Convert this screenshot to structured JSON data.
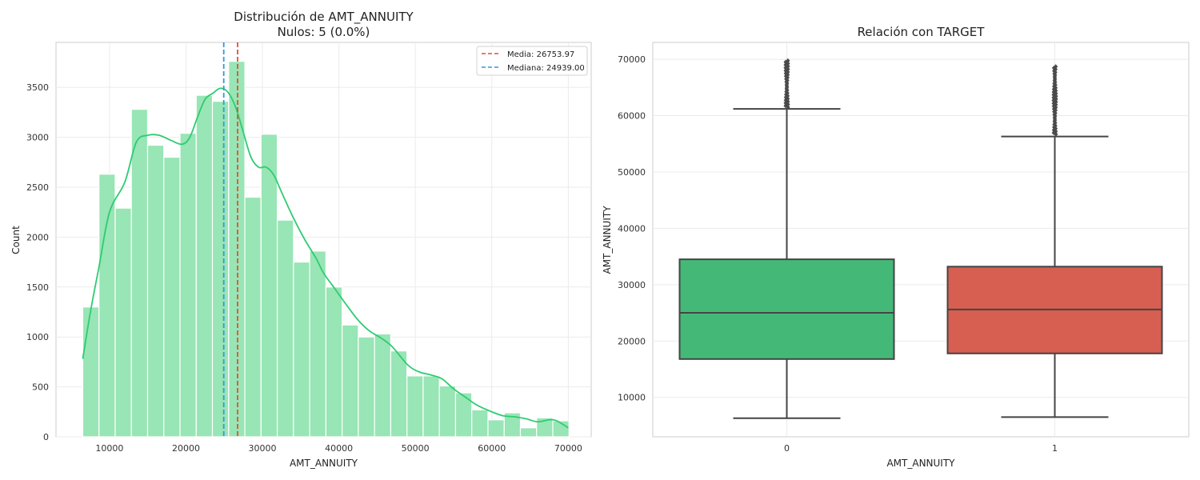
{
  "chart_data": [
    {
      "type": "histogram",
      "title": "Distribución de AMT_ANNUITY",
      "subtitle": "Nulos: 5 (0.0%)",
      "xlabel": "AMT_ANNUITY",
      "ylabel": "Count",
      "xlim": [
        3000,
        73000
      ],
      "ylim": [
        0,
        3950
      ],
      "xticks": [
        10000,
        20000,
        30000,
        40000,
        50000,
        60000,
        70000
      ],
      "yticks": [
        0,
        500,
        1000,
        1500,
        2000,
        2500,
        3000,
        3500
      ],
      "bins": [
        6500,
        8620,
        10740,
        12860,
        14980,
        17100,
        19220,
        21340,
        23460,
        25580,
        27700,
        29820,
        31940,
        34060,
        36180,
        38300,
        40420,
        42540,
        44660,
        46780,
        48900,
        51020,
        53140,
        55260,
        57380,
        59500,
        61620,
        63740,
        65860,
        67980,
        70100
      ],
      "counts": [
        1300,
        2630,
        2290,
        3280,
        2920,
        2800,
        3040,
        3420,
        3360,
        3760,
        2400,
        3030,
        2170,
        1750,
        1860,
        1500,
        1120,
        1000,
        1030,
        860,
        610,
        610,
        510,
        440,
        270,
        170,
        240,
        90,
        190,
        160
      ],
      "kde": [
        [
          6500,
          780
        ],
        [
          7500,
          1250
        ],
        [
          8620,
          1700
        ],
        [
          10000,
          2250
        ],
        [
          12000,
          2550
        ],
        [
          13500,
          2950
        ],
        [
          15000,
          3020
        ],
        [
          16500,
          3020
        ],
        [
          18000,
          2970
        ],
        [
          19500,
          2930
        ],
        [
          20500,
          3000
        ],
        [
          21500,
          3200
        ],
        [
          22500,
          3380
        ],
        [
          23500,
          3440
        ],
        [
          24500,
          3490
        ],
        [
          25500,
          3450
        ],
        [
          26500,
          3300
        ],
        [
          27500,
          3050
        ],
        [
          28500,
          2800
        ],
        [
          29500,
          2700
        ],
        [
          30500,
          2700
        ],
        [
          31500,
          2620
        ],
        [
          32500,
          2450
        ],
        [
          34000,
          2200
        ],
        [
          35500,
          1980
        ],
        [
          37000,
          1790
        ],
        [
          38000,
          1640
        ],
        [
          39500,
          1480
        ],
        [
          41000,
          1320
        ],
        [
          42500,
          1170
        ],
        [
          44000,
          1060
        ],
        [
          45500,
          990
        ],
        [
          47000,
          900
        ],
        [
          49000,
          720
        ],
        [
          50500,
          650
        ],
        [
          52000,
          620
        ],
        [
          53500,
          580
        ],
        [
          55000,
          480
        ],
        [
          56500,
          400
        ],
        [
          58000,
          320
        ],
        [
          60000,
          250
        ],
        [
          61500,
          210
        ],
        [
          63000,
          200
        ],
        [
          64500,
          180
        ],
        [
          66000,
          150
        ],
        [
          67500,
          170
        ],
        [
          68500,
          160
        ],
        [
          70000,
          90
        ]
      ],
      "mean_line": {
        "value": 26753.97,
        "label": "Media: 26753.97",
        "color": "#e74c3c"
      },
      "median_line": {
        "value": 24939.0,
        "label": "Mediana: 24939.00",
        "color": "#3498db"
      },
      "colors": {
        "bars": "#98e5b5",
        "kde": "#2ecc71"
      },
      "legend_position": "top-right",
      "grid": true
    },
    {
      "type": "boxplot",
      "title": "Relación con TARGET",
      "xlabel": "AMT_ANNUITY",
      "ylabel": "AMT_ANNUITY",
      "categories": [
        "0",
        "1"
      ],
      "ylim": [
        3000,
        73000
      ],
      "yticks": [
        10000,
        20000,
        30000,
        40000,
        50000,
        60000,
        70000
      ],
      "boxes": [
        {
          "category": "0",
          "whisker_low": 6300,
          "q1": 16800,
          "median": 25000,
          "q3": 34500,
          "whisker_high": 61200,
          "outliers_min": 61500,
          "outliers_max": 69800,
          "color": "#44b977"
        },
        {
          "category": "1",
          "whisker_low": 6500,
          "q1": 17800,
          "median": 25600,
          "q3": 33200,
          "whisker_high": 56300,
          "outliers_min": 56700,
          "outliers_max": 68800,
          "color": "#d65f52"
        }
      ],
      "grid": true
    }
  ]
}
